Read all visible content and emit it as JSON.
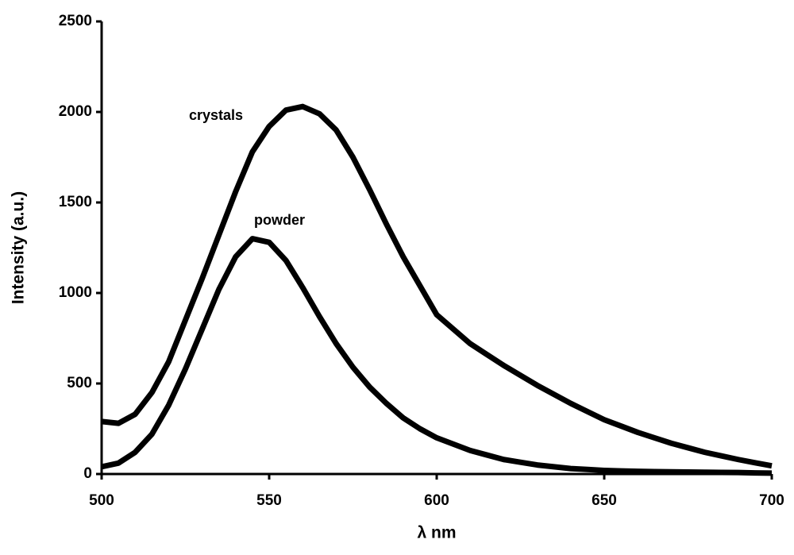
{
  "chart_data": {
    "type": "line",
    "x_label": "λ nm",
    "y_label": "Intensity (a.u.)",
    "x": [
      500,
      505,
      510,
      515,
      520,
      525,
      530,
      535,
      540,
      545,
      550,
      555,
      560,
      565,
      570,
      575,
      580,
      585,
      590,
      595,
      600,
      605,
      610,
      615,
      620,
      625,
      630,
      635,
      640,
      645,
      650,
      655,
      660,
      665,
      670,
      675,
      680,
      685,
      690,
      695,
      700
    ],
    "series": [
      {
        "name": "crystals",
        "color": "#000000",
        "values": [
          290,
          280,
          330,
          450,
          620,
          850,
          1080,
          1320,
          1560,
          1780,
          1920,
          2010,
          2030,
          1990,
          1900,
          1750,
          1570,
          1380,
          1200,
          1040,
          880,
          800,
          720,
          660,
          600,
          545,
          490,
          440,
          390,
          345,
          300,
          265,
          230,
          200,
          170,
          145,
          120,
          100,
          80,
          62,
          45
        ]
      },
      {
        "name": "powder",
        "color": "#000000",
        "values": [
          40,
          60,
          120,
          220,
          380,
          580,
          800,
          1020,
          1200,
          1300,
          1280,
          1180,
          1030,
          870,
          720,
          590,
          480,
          390,
          310,
          250,
          200,
          165,
          130,
          105,
          80,
          65,
          50,
          40,
          30,
          25,
          20,
          17,
          15,
          13,
          12,
          11,
          10,
          9,
          8,
          6,
          5
        ]
      }
    ],
    "xlim": [
      500,
      700
    ],
    "xticks": [
      500,
      550,
      600,
      650,
      700
    ],
    "ylim": [
      0,
      2500
    ],
    "yticks": [
      0,
      500,
      1000,
      1500,
      2000,
      2500
    ],
    "grid": false
  }
}
